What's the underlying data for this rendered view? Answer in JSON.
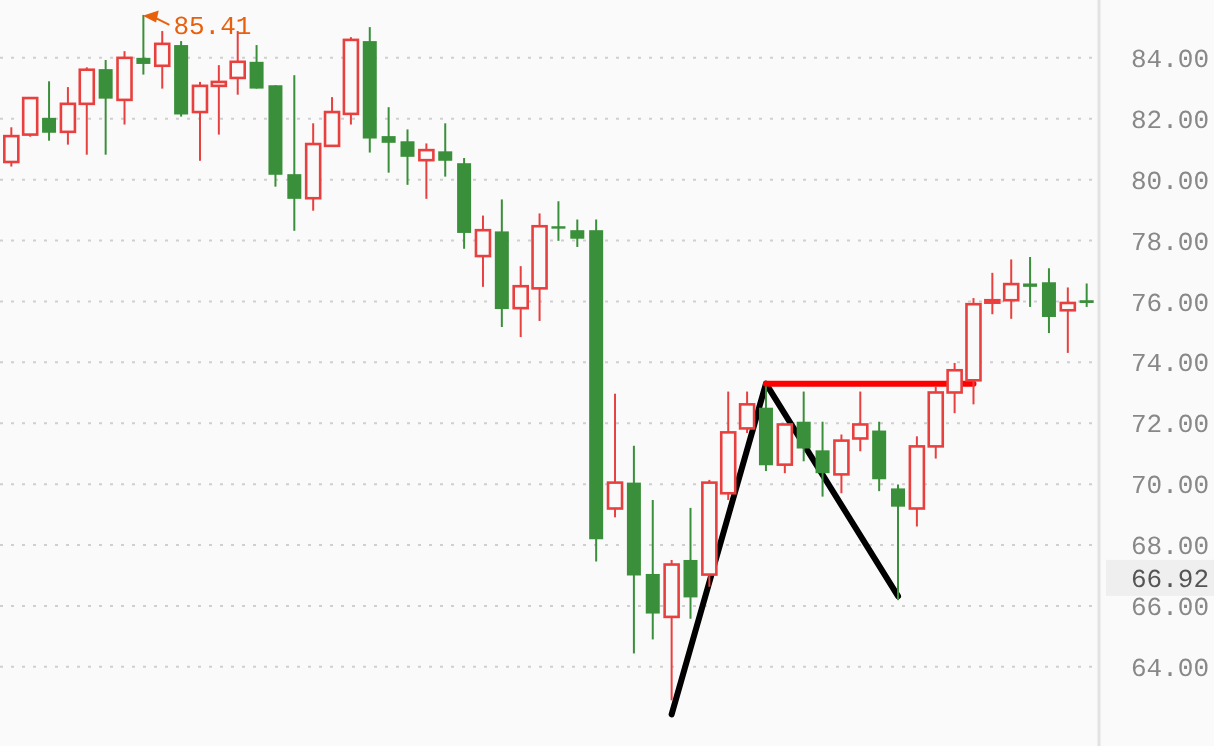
{
  "chart_data": {
    "type": "candlestick",
    "categories": [
      null,
      null,
      null,
      null,
      null,
      null,
      null,
      null,
      null,
      null,
      null,
      null,
      null,
      null,
      null,
      null,
      null,
      null,
      null,
      null,
      null,
      null,
      null,
      null,
      null,
      null,
      null,
      null,
      null,
      null,
      null,
      null,
      null,
      null,
      null,
      null,
      null,
      null,
      null,
      null,
      null,
      null,
      null,
      null,
      null,
      null,
      null,
      null,
      null,
      null,
      null,
      null,
      null,
      null,
      null,
      null,
      null,
      null
    ],
    "ohlc": [
      [
        80.58,
        81.72,
        80.43,
        81.43
      ],
      [
        81.48,
        82.7,
        81.41,
        82.68
      ],
      [
        82.03,
        83.23,
        81.28,
        81.54
      ],
      [
        81.57,
        83.04,
        81.15,
        82.49
      ],
      [
        82.49,
        83.69,
        80.82,
        83.61
      ],
      [
        83.63,
        83.93,
        80.82,
        82.66
      ],
      [
        82.62,
        84.22,
        81.81,
        84.0
      ],
      [
        84.0,
        85.41,
        83.45,
        83.8
      ],
      [
        83.74,
        84.88,
        82.99,
        84.46
      ],
      [
        84.42,
        84.55,
        82.07,
        82.14
      ],
      [
        82.22,
        83.21,
        80.62,
        83.08
      ],
      [
        83.08,
        83.76,
        81.48,
        83.21
      ],
      [
        83.34,
        84.88,
        82.79,
        83.87
      ],
      [
        83.87,
        84.42,
        82.99,
        82.99
      ],
      [
        83.1,
        83.1,
        79.77,
        80.16
      ],
      [
        80.18,
        83.43,
        78.32,
        79.37
      ],
      [
        79.39,
        81.85,
        78.98,
        81.17
      ],
      [
        81.11,
        82.71,
        81.11,
        82.22
      ],
      [
        82.16,
        84.68,
        81.81,
        84.59
      ],
      [
        84.55,
        85.01,
        80.89,
        81.35
      ],
      [
        81.43,
        82.38,
        80.23,
        81.21
      ],
      [
        81.26,
        81.65,
        79.83,
        80.75
      ],
      [
        80.64,
        81.19,
        79.37,
        80.97
      ],
      [
        80.93,
        81.85,
        80.1,
        80.62
      ],
      [
        80.54,
        80.71,
        77.73,
        78.25
      ],
      [
        77.49,
        78.82,
        76.48,
        78.34
      ],
      [
        78.3,
        79.35,
        75.16,
        75.75
      ],
      [
        75.78,
        77.16,
        74.83,
        76.5
      ],
      [
        76.43,
        78.89,
        75.36,
        78.47
      ],
      [
        78.47,
        79.29,
        77.99,
        78.39
      ],
      [
        78.34,
        78.69,
        77.79,
        78.06
      ],
      [
        78.34,
        78.69,
        67.46,
        68.19
      ],
      [
        69.2,
        72.97,
        68.91,
        70.05
      ],
      [
        70.05,
        71.26,
        64.44,
        67.0
      ],
      [
        67.05,
        69.48,
        64.9,
        65.75
      ],
      [
        65.64,
        67.51,
        62.9,
        67.36
      ],
      [
        67.51,
        69.22,
        65.58,
        66.28
      ],
      [
        67.03,
        70.14,
        66.63,
        70.05
      ],
      [
        69.7,
        73.04,
        69.48,
        71.7
      ],
      [
        71.83,
        73.04,
        71.68,
        72.62
      ],
      [
        72.51,
        73.21,
        70.43,
        70.62
      ],
      [
        70.64,
        71.96,
        70.36,
        71.96
      ],
      [
        72.05,
        73.04,
        70.75,
        71.17
      ],
      [
        71.11,
        72.05,
        69.59,
        70.36
      ],
      [
        70.32,
        71.63,
        69.7,
        71.43
      ],
      [
        71.5,
        73.04,
        71.08,
        71.96
      ],
      [
        71.76,
        72.05,
        69.77,
        70.16
      ],
      [
        69.86,
        69.99,
        66.19,
        69.26
      ],
      [
        69.2,
        71.57,
        68.61,
        71.24
      ],
      [
        71.24,
        73.21,
        70.84,
        73.01
      ],
      [
        73.01,
        73.98,
        72.33,
        73.74
      ],
      [
        73.41,
        76.11,
        72.62,
        75.91
      ],
      [
        75.96,
        76.94,
        75.58,
        76.04
      ],
      [
        76.04,
        77.38,
        75.43,
        76.57
      ],
      [
        76.59,
        77.46,
        75.82,
        76.48
      ],
      [
        76.63,
        77.09,
        74.96,
        75.49
      ],
      [
        75.71,
        76.46,
        74.31,
        75.95
      ],
      [
        76.04,
        76.59,
        75.82,
        75.95
      ]
    ],
    "colors": [
      "#e8403f",
      "#e8403f",
      "#3a8f3a",
      "#e8403f",
      "#e8403f",
      "#3a8f3a",
      "#e8403f",
      "#3a8f3a",
      "#e8403f",
      "#3a8f3a",
      "#e8403f",
      "#e8403f",
      "#e8403f",
      "#3a8f3a",
      "#3a8f3a",
      "#3a8f3a",
      "#e8403f",
      "#e8403f",
      "#e8403f",
      "#3a8f3a",
      "#3a8f3a",
      "#3a8f3a",
      "#e8403f",
      "#3a8f3a",
      "#3a8f3a",
      "#e8403f",
      "#3a8f3a",
      "#e8403f",
      "#e8403f",
      "#3a8f3a",
      "#3a8f3a",
      "#3a8f3a",
      "#e8403f",
      "#3a8f3a",
      "#3a8f3a",
      "#e8403f",
      "#3a8f3a",
      "#e8403f",
      "#e8403f",
      "#e8403f",
      "#3a8f3a",
      "#e8403f",
      "#3a8f3a",
      "#3a8f3a",
      "#e8403f",
      "#e8403f",
      "#3a8f3a",
      "#3a8f3a",
      "#e8403f",
      "#e8403f",
      "#e8403f",
      "#e8403f",
      "#e8403f",
      "#e8403f",
      "#3a8f3a",
      "#3a8f3a",
      "#e8403f",
      "#3a8f3a"
    ],
    "series": [
      {
        "type": "line",
        "color": "#000000",
        "values": [
          null,
          null,
          null,
          null,
          null,
          null,
          null,
          null,
          null,
          null,
          null,
          null,
          null,
          null,
          null,
          null,
          null,
          null,
          null,
          null,
          null,
          null,
          null,
          null,
          null,
          null,
          null,
          null,
          null,
          null,
          null,
          null,
          null,
          null,
          null,
          62.44,
          null,
          null,
          null,
          null,
          73.3,
          null,
          null,
          null,
          null,
          null,
          null,
          66.32,
          null,
          null,
          null,
          null,
          null,
          null,
          null,
          null,
          null,
          null
        ]
      },
      {
        "type": "line",
        "color": "#ff0000",
        "values": [
          null,
          null,
          null,
          null,
          null,
          null,
          null,
          null,
          null,
          null,
          null,
          null,
          null,
          null,
          null,
          null,
          null,
          null,
          null,
          null,
          null,
          null,
          null,
          null,
          null,
          null,
          null,
          null,
          null,
          null,
          null,
          null,
          null,
          null,
          null,
          null,
          null,
          null,
          null,
          null,
          73.3,
          null,
          null,
          null,
          null,
          null,
          null,
          null,
          null,
          null,
          null,
          73.3,
          null,
          null,
          null,
          null,
          null,
          null
        ]
      }
    ],
    "ylim": [
      61.4,
      85.9
    ],
    "yticks": [
      {
        "value": 64,
        "label": "64.00"
      },
      {
        "value": 66,
        "label": "66.00"
      },
      {
        "value": 68,
        "label": "68.00"
      },
      {
        "value": 70,
        "label": "70.00"
      },
      {
        "value": 72,
        "label": "72.00"
      },
      {
        "value": 74,
        "label": "74.00"
      },
      {
        "value": 76,
        "label": "76.00"
      },
      {
        "value": 78,
        "label": "78.00"
      },
      {
        "value": 80,
        "label": "80.00"
      },
      {
        "value": 82,
        "label": "82.00"
      },
      {
        "value": 84,
        "label": "84.00"
      }
    ],
    "grid": "y",
    "tick_labels": "y",
    "annotations": [
      "85.41",
      "66.92"
    ]
  }
}
